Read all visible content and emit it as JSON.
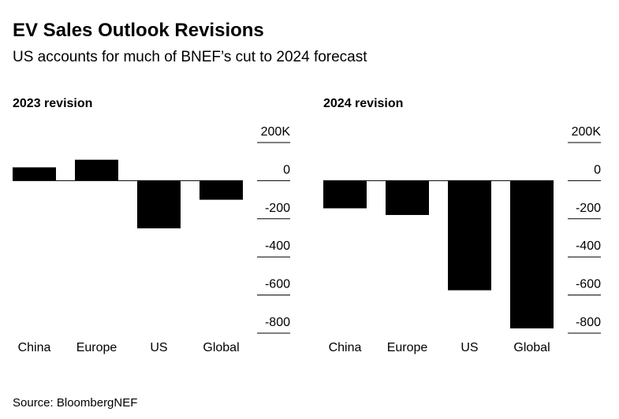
{
  "title": "EV Sales Outlook Revisions",
  "subtitle": "US accounts for much of BNEF’s cut to 2024 forecast",
  "source": "Source: BloombergNEF",
  "chart_data": [
    {
      "type": "bar",
      "title": "2023 revision",
      "categories": [
        "China",
        "Europe",
        "US",
        "Global"
      ],
      "values": [
        70,
        110,
        -250,
        -100
      ],
      "color": "#000000",
      "ylim": [
        -800,
        200
      ],
      "yticks": [
        {
          "value": 200,
          "label": "200K"
        },
        0,
        -200,
        -400,
        -600,
        -800
      ]
    },
    {
      "type": "bar",
      "title": "2024 revision",
      "categories": [
        "China",
        "Europe",
        "US",
        "Global"
      ],
      "values": [
        -145,
        -180,
        -575,
        -775
      ],
      "color": "#000000",
      "ylim": [
        -800,
        200
      ],
      "yticks": [
        {
          "value": 200,
          "label": "200K"
        },
        0,
        -200,
        -400,
        -600,
        -800
      ]
    }
  ]
}
